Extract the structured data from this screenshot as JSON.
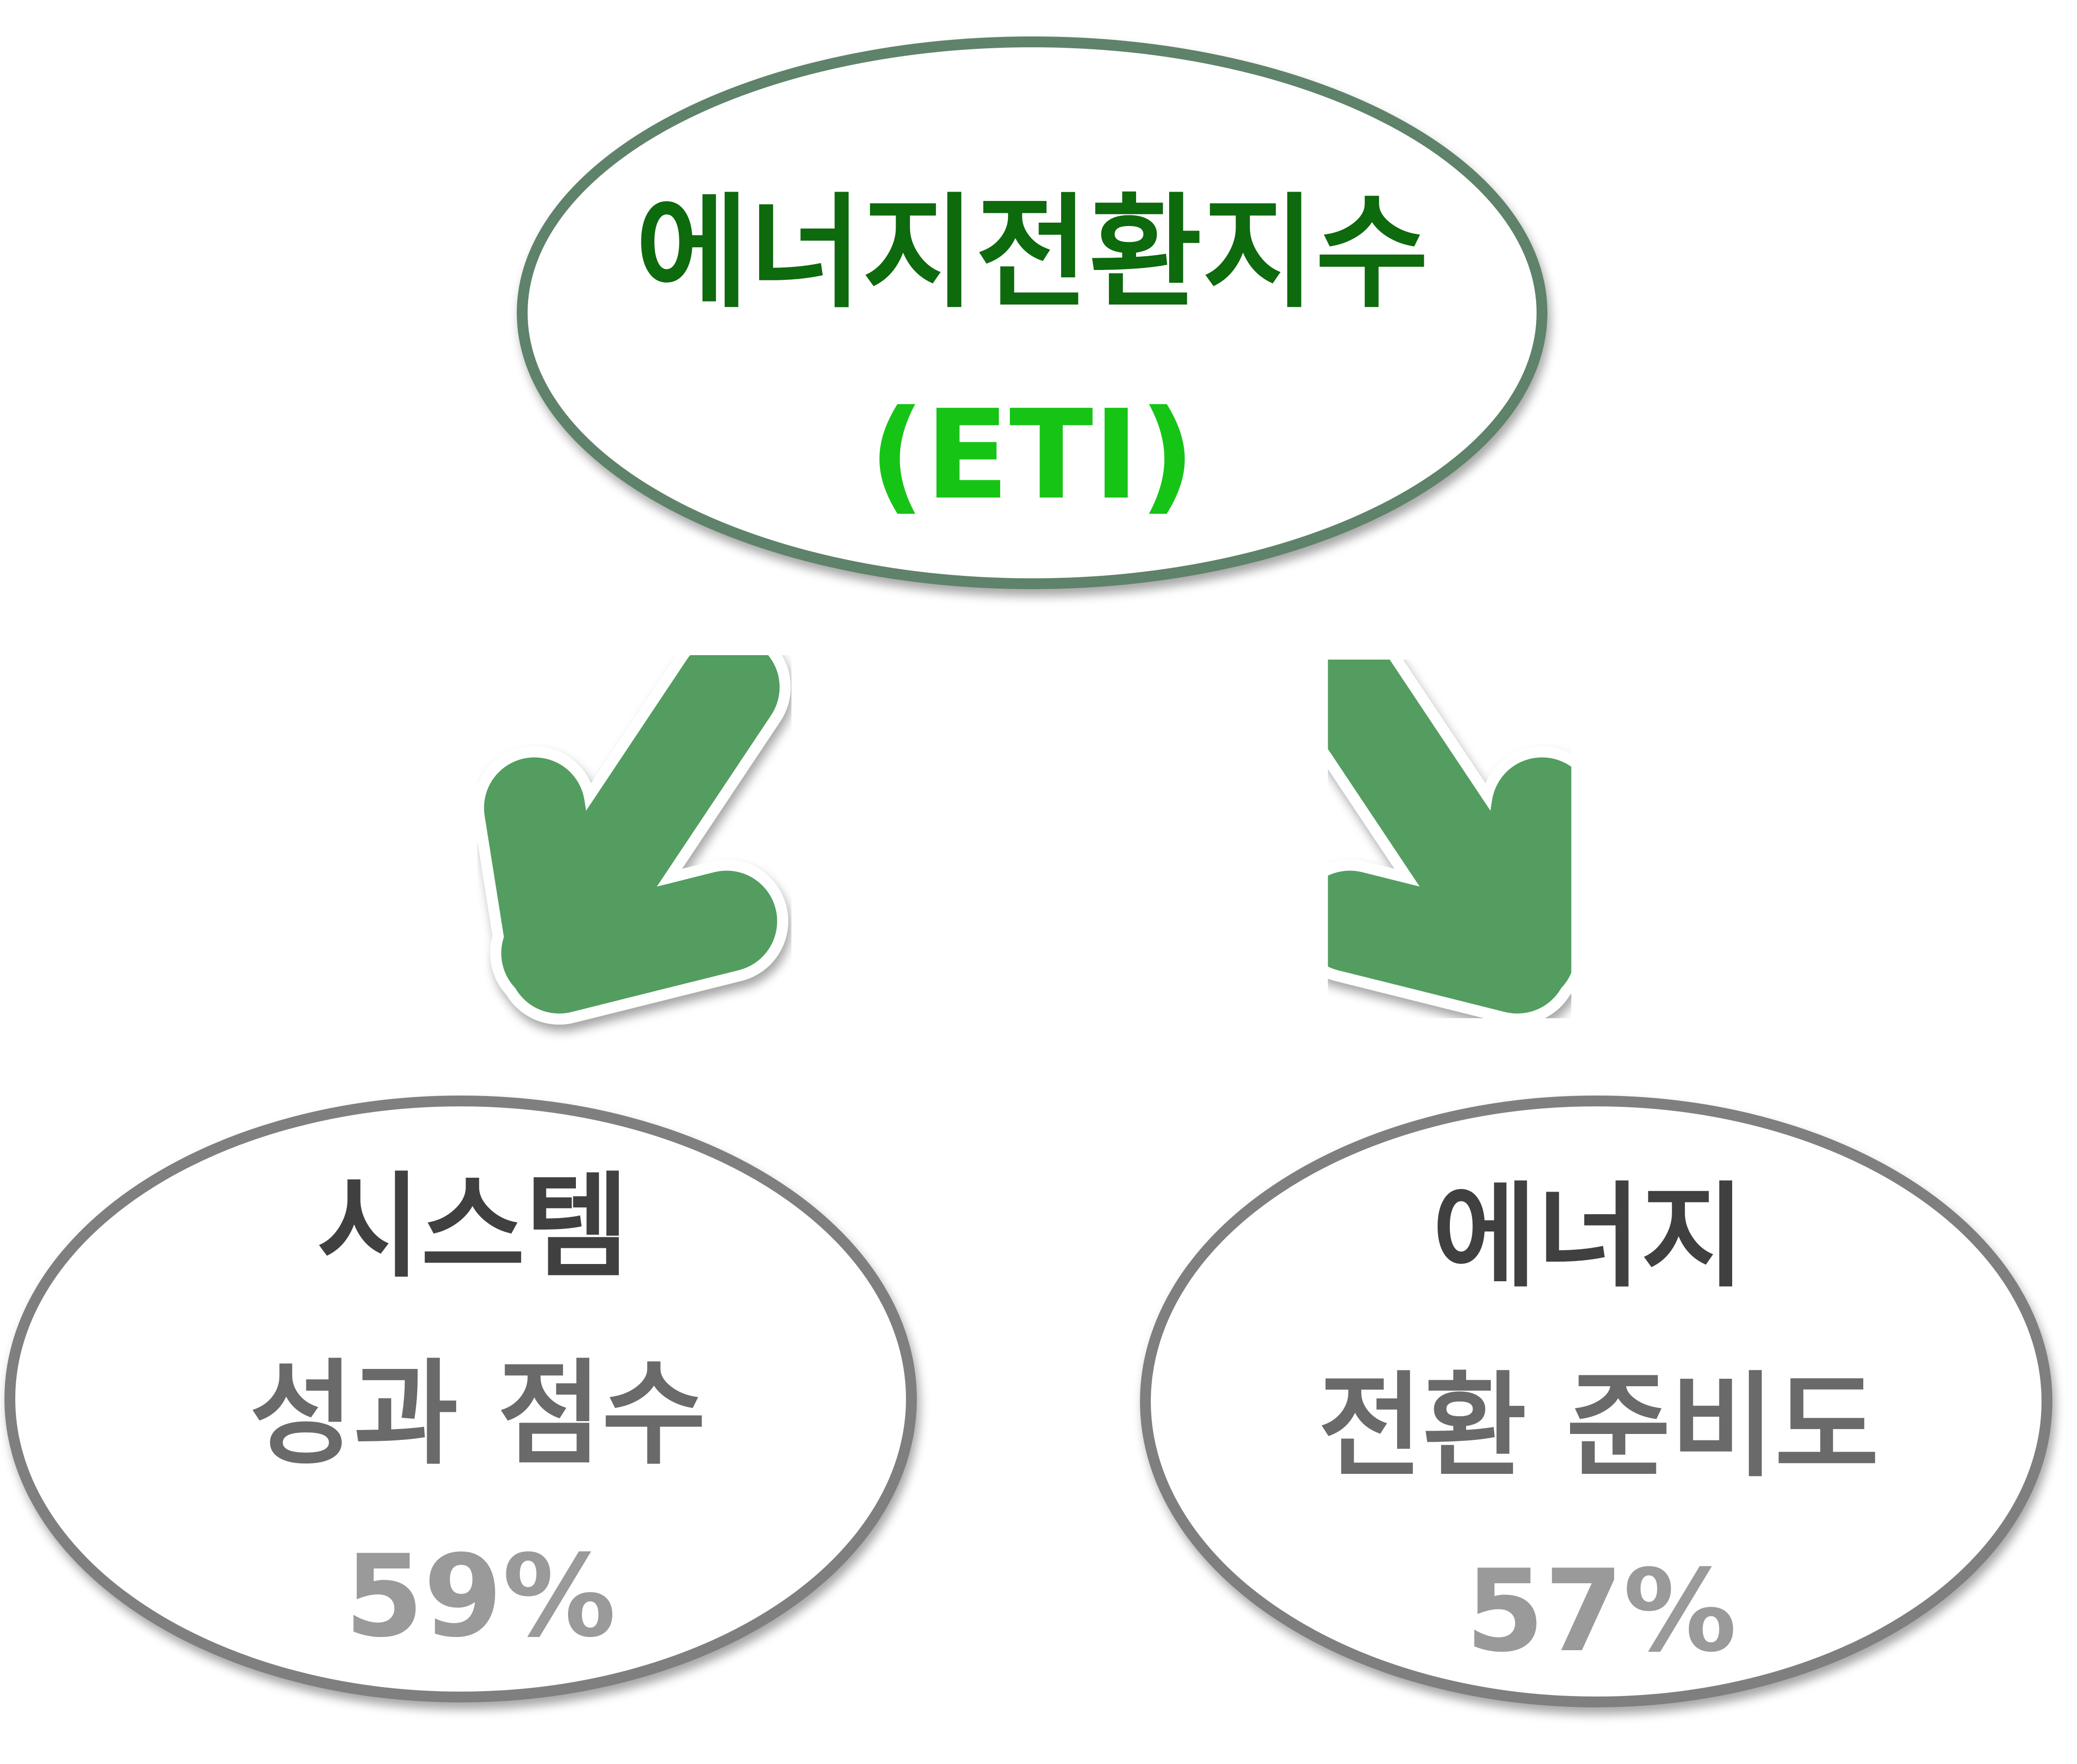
{
  "top_node": {
    "title": "에너지전환지수",
    "subtitle": "(ETI)"
  },
  "left_node": {
    "title": "시스템",
    "subtitle": "성과 점수",
    "value": "59%"
  },
  "right_node": {
    "title": "에너지",
    "subtitle": "전환 준비도",
    "value": "57%"
  },
  "colors": {
    "top_border": "#5f826a",
    "top_title": "#0f6b0f",
    "top_subtitle": "#14c414",
    "arrow_fill": "#529d60",
    "node_border": "#7f7f7f",
    "node_title": "#404040",
    "node_subtitle": "#6b6b6b",
    "node_value": "#9a9a9a"
  }
}
